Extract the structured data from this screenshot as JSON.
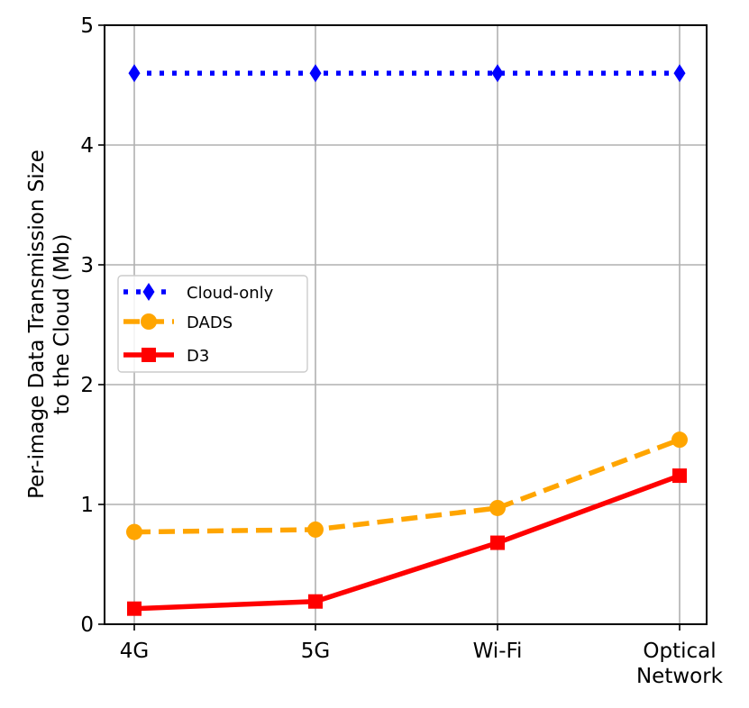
{
  "chart_data": {
    "type": "line",
    "categories": [
      "4G",
      "5G",
      "Wi-Fi",
      "Optical Network"
    ],
    "category_tick_lines": [
      [
        "4G"
      ],
      [
        "5G"
      ],
      [
        "Wi-Fi"
      ],
      [
        "Optical",
        "Network"
      ]
    ],
    "ylabel_lines": [
      "Per-image Data Transmission Size",
      "to the Cloud (Mb)"
    ],
    "ylim": [
      0,
      5
    ],
    "yticks": [
      "0",
      "1",
      "2",
      "3",
      "4",
      "5"
    ],
    "grid": true,
    "legend_position": "center-left",
    "series": [
      {
        "name": "Cloud-only",
        "values": [
          4.6,
          4.6,
          4.6,
          4.6
        ],
        "color": "#0000ff",
        "style": "dotted",
        "marker": "diamond"
      },
      {
        "name": "DADS",
        "values": [
          0.77,
          0.79,
          0.97,
          1.54
        ],
        "color": "#ffa500",
        "style": "dashed",
        "marker": "circle"
      },
      {
        "name": "D3",
        "values": [
          0.13,
          0.19,
          0.68,
          1.24
        ],
        "color": "#ff0000",
        "style": "solid",
        "marker": "square"
      }
    ]
  }
}
